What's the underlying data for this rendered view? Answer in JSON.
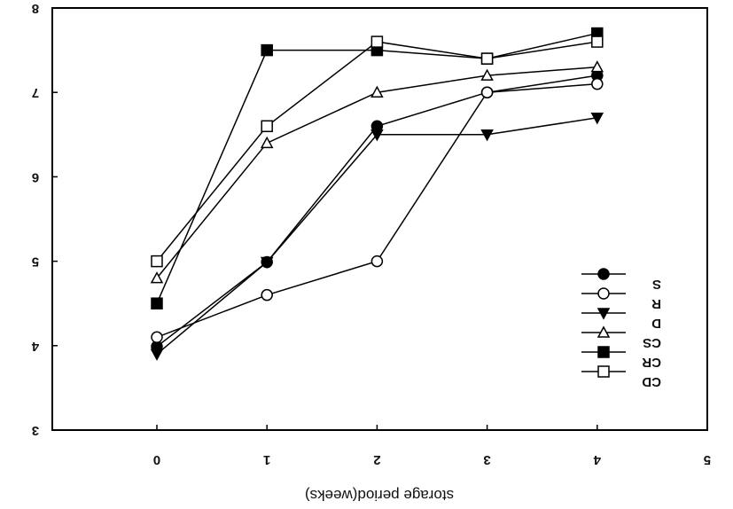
{
  "chart_data": {
    "type": "line",
    "title": "",
    "xlabel": "storage period(weeks)",
    "ylabel": "",
    "xlim": [
      -0.95,
      5
    ],
    "ylim": [
      3,
      8
    ],
    "x_ticks": [
      "0",
      "1",
      "2",
      "3",
      "4",
      "5"
    ],
    "y_ticks": [
      "3",
      "4",
      "5",
      "6",
      "7",
      "8"
    ],
    "grid": false,
    "legend_position": "bottom-right",
    "series": [
      {
        "name": "S",
        "marker": "filled-circle",
        "color": "#000000",
        "x": [
          0,
          1,
          2,
          3,
          4
        ],
        "y": [
          3.99,
          4.99,
          6.6,
          7.0,
          7.2
        ]
      },
      {
        "name": "R",
        "marker": "open-circle",
        "color": "#000000",
        "x": [
          0,
          1,
          2,
          3,
          4
        ],
        "y": [
          4.1,
          4.6,
          5.0,
          7.0,
          7.1
        ]
      },
      {
        "name": "D",
        "marker": "filled-triangle",
        "color": "#000000",
        "x": [
          0,
          1,
          2,
          3,
          4
        ],
        "y": [
          3.9,
          4.99,
          6.5,
          6.5,
          6.7
        ]
      },
      {
        "name": "CS",
        "marker": "open-triangle",
        "color": "#000000",
        "x": [
          0,
          1,
          2,
          3,
          4
        ],
        "y": [
          4.8,
          6.4,
          7.0,
          7.2,
          7.3
        ]
      },
      {
        "name": "CR",
        "marker": "filled-square",
        "color": "#000000",
        "x": [
          0,
          1,
          2,
          3,
          4
        ],
        "y": [
          4.5,
          7.5,
          7.5,
          7.4,
          7.7
        ]
      },
      {
        "name": "CD",
        "marker": "open-square",
        "color": "#000000",
        "x": [
          0,
          1,
          2,
          3,
          4
        ],
        "y": [
          5.0,
          6.6,
          7.6,
          7.4,
          7.6
        ]
      }
    ]
  }
}
